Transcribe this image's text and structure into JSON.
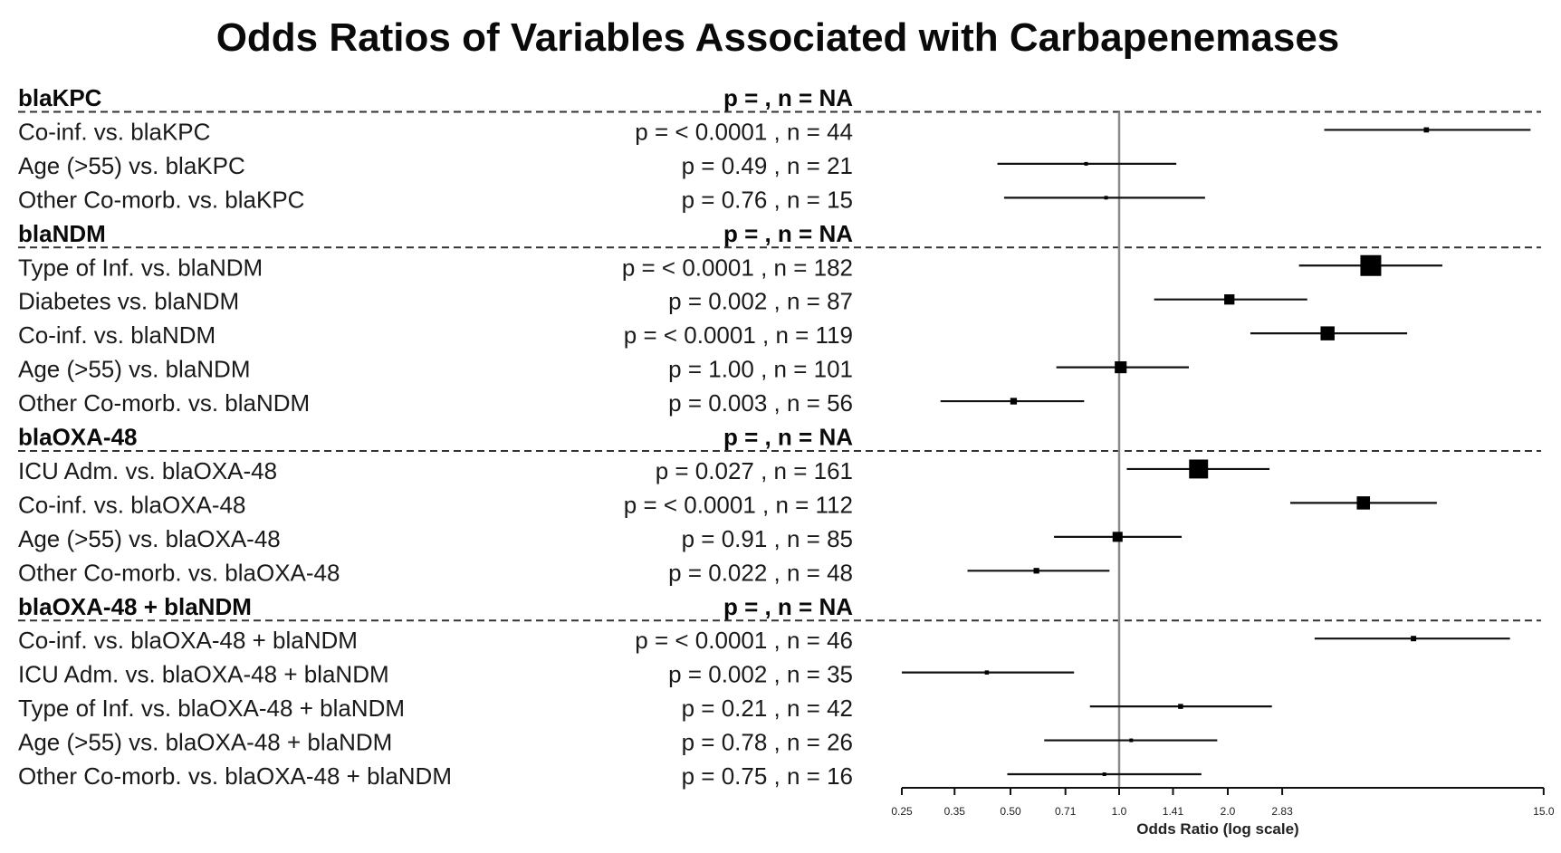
{
  "chart_data": {
    "type": "forest",
    "title": "Odds Ratios of Variables Associated with Carbapenemases",
    "xlabel": "Odds Ratio (log scale)",
    "xscale": "log",
    "xlim": [
      0.25,
      15.0
    ],
    "xticks": [
      0.25,
      0.35,
      0.5,
      0.71,
      1.0,
      1.41,
      2.0,
      2.83,
      15.0
    ],
    "xtick_labels": [
      "0.25",
      "0.35",
      "0.50",
      "0.71",
      "1.0",
      "1.41",
      "2.0",
      "2.83",
      "15.0"
    ],
    "reference_line": 1.0,
    "groups": [
      {
        "name": "blaKPC",
        "stat_label": "p =   , n = NA",
        "rows": [
          {
            "label": "Co-inf. vs. blaKPC",
            "stat": "p = < 0.0001 , n = 44",
            "p": "< 0.0001",
            "n": 44,
            "or": 7.1,
            "lower": 3.7,
            "upper": 13.8
          },
          {
            "label": "Age (>55) vs. blaKPC",
            "stat": "p = 0.49 , n = 21",
            "p": "0.49",
            "n": 21,
            "or": 0.81,
            "lower": 0.46,
            "upper": 1.44
          },
          {
            "label": "Other Co-morb. vs. blaKPC",
            "stat": "p = 0.76 , n = 15",
            "p": "0.76",
            "n": 15,
            "or": 0.92,
            "lower": 0.48,
            "upper": 1.73
          }
        ]
      },
      {
        "name": "blaNDM",
        "stat_label": "p =   , n = NA",
        "rows": [
          {
            "label": "Type of Inf. vs. blaNDM",
            "stat": "p = < 0.0001 , n = 182",
            "p": "< 0.0001",
            "n": 182,
            "or": 4.98,
            "lower": 3.15,
            "upper": 7.86
          },
          {
            "label": "Diabetes vs. blaNDM",
            "stat": "p = 0.002 , n = 87",
            "p": "0.002",
            "n": 87,
            "or": 2.02,
            "lower": 1.25,
            "upper": 3.32
          },
          {
            "label": "Co-inf. vs. blaNDM",
            "stat": "p = < 0.0001 , n = 119",
            "p": "< 0.0001",
            "n": 119,
            "or": 3.78,
            "lower": 2.31,
            "upper": 6.28
          },
          {
            "label": "Age (>55) vs. blaNDM",
            "stat": "p = 1.00 , n = 101",
            "p": "1.00",
            "n": 101,
            "or": 1.01,
            "lower": 0.67,
            "upper": 1.56
          },
          {
            "label": "Other Co-morb. vs. blaNDM",
            "stat": "p = 0.003 , n = 56",
            "p": "0.003",
            "n": 56,
            "or": 0.51,
            "lower": 0.32,
            "upper": 0.8
          }
        ]
      },
      {
        "name": "blaOXA-48",
        "stat_label": "p =   , n = NA",
        "rows": [
          {
            "label": "ICU Adm. vs. blaOXA-48",
            "stat": "p = 0.027 , n = 161",
            "p": "0.027",
            "n": 161,
            "or": 1.66,
            "lower": 1.05,
            "upper": 2.61
          },
          {
            "label": "Co-inf. vs. blaOXA-48",
            "stat": "p = < 0.0001 , n = 112",
            "p": "< 0.0001",
            "n": 112,
            "or": 4.75,
            "lower": 2.98,
            "upper": 7.59
          },
          {
            "label": "Age (>55) vs. blaOXA-48",
            "stat": "p = 0.91 , n = 85",
            "p": "0.91",
            "n": 85,
            "or": 0.99,
            "lower": 0.66,
            "upper": 1.49
          },
          {
            "label": "Other Co-morb. vs. blaOXA-48",
            "stat": "p = 0.022 , n = 48",
            "p": "0.022",
            "n": 48,
            "or": 0.59,
            "lower": 0.38,
            "upper": 0.94
          }
        ]
      },
      {
        "name": "blaOXA-48 + blaNDM",
        "stat_label": "p =   , n = NA",
        "rows": [
          {
            "label": "Co-inf. vs. blaOXA-48 + blaNDM",
            "stat": "p = < 0.0001 , n = 46",
            "p": "< 0.0001",
            "n": 46,
            "or": 6.54,
            "lower": 3.48,
            "upper": 12.1
          },
          {
            "label": "ICU Adm. vs. blaOXA-48 + blaNDM",
            "stat": "p = 0.002 , n = 35",
            "p": "0.002",
            "n": 35,
            "or": 0.43,
            "lower": 0.25,
            "upper": 0.75
          },
          {
            "label": "Type of Inf. vs. blaOXA-48 + blaNDM",
            "stat": "p = 0.21 , n = 42",
            "p": "0.21",
            "n": 42,
            "or": 1.48,
            "lower": 0.83,
            "upper": 2.65
          },
          {
            "label": "Age (>55) vs. blaOXA-48 + blaNDM",
            "stat": "p = 0.78 , n = 26",
            "p": "0.78",
            "n": 26,
            "or": 1.08,
            "lower": 0.62,
            "upper": 1.87
          },
          {
            "label": "Other Co-morb. vs. blaOXA-48 + blaNDM",
            "stat": "p = 0.75 , n = 16",
            "p": "0.75",
            "n": 16,
            "or": 0.91,
            "lower": 0.49,
            "upper": 1.69
          }
        ]
      }
    ]
  }
}
